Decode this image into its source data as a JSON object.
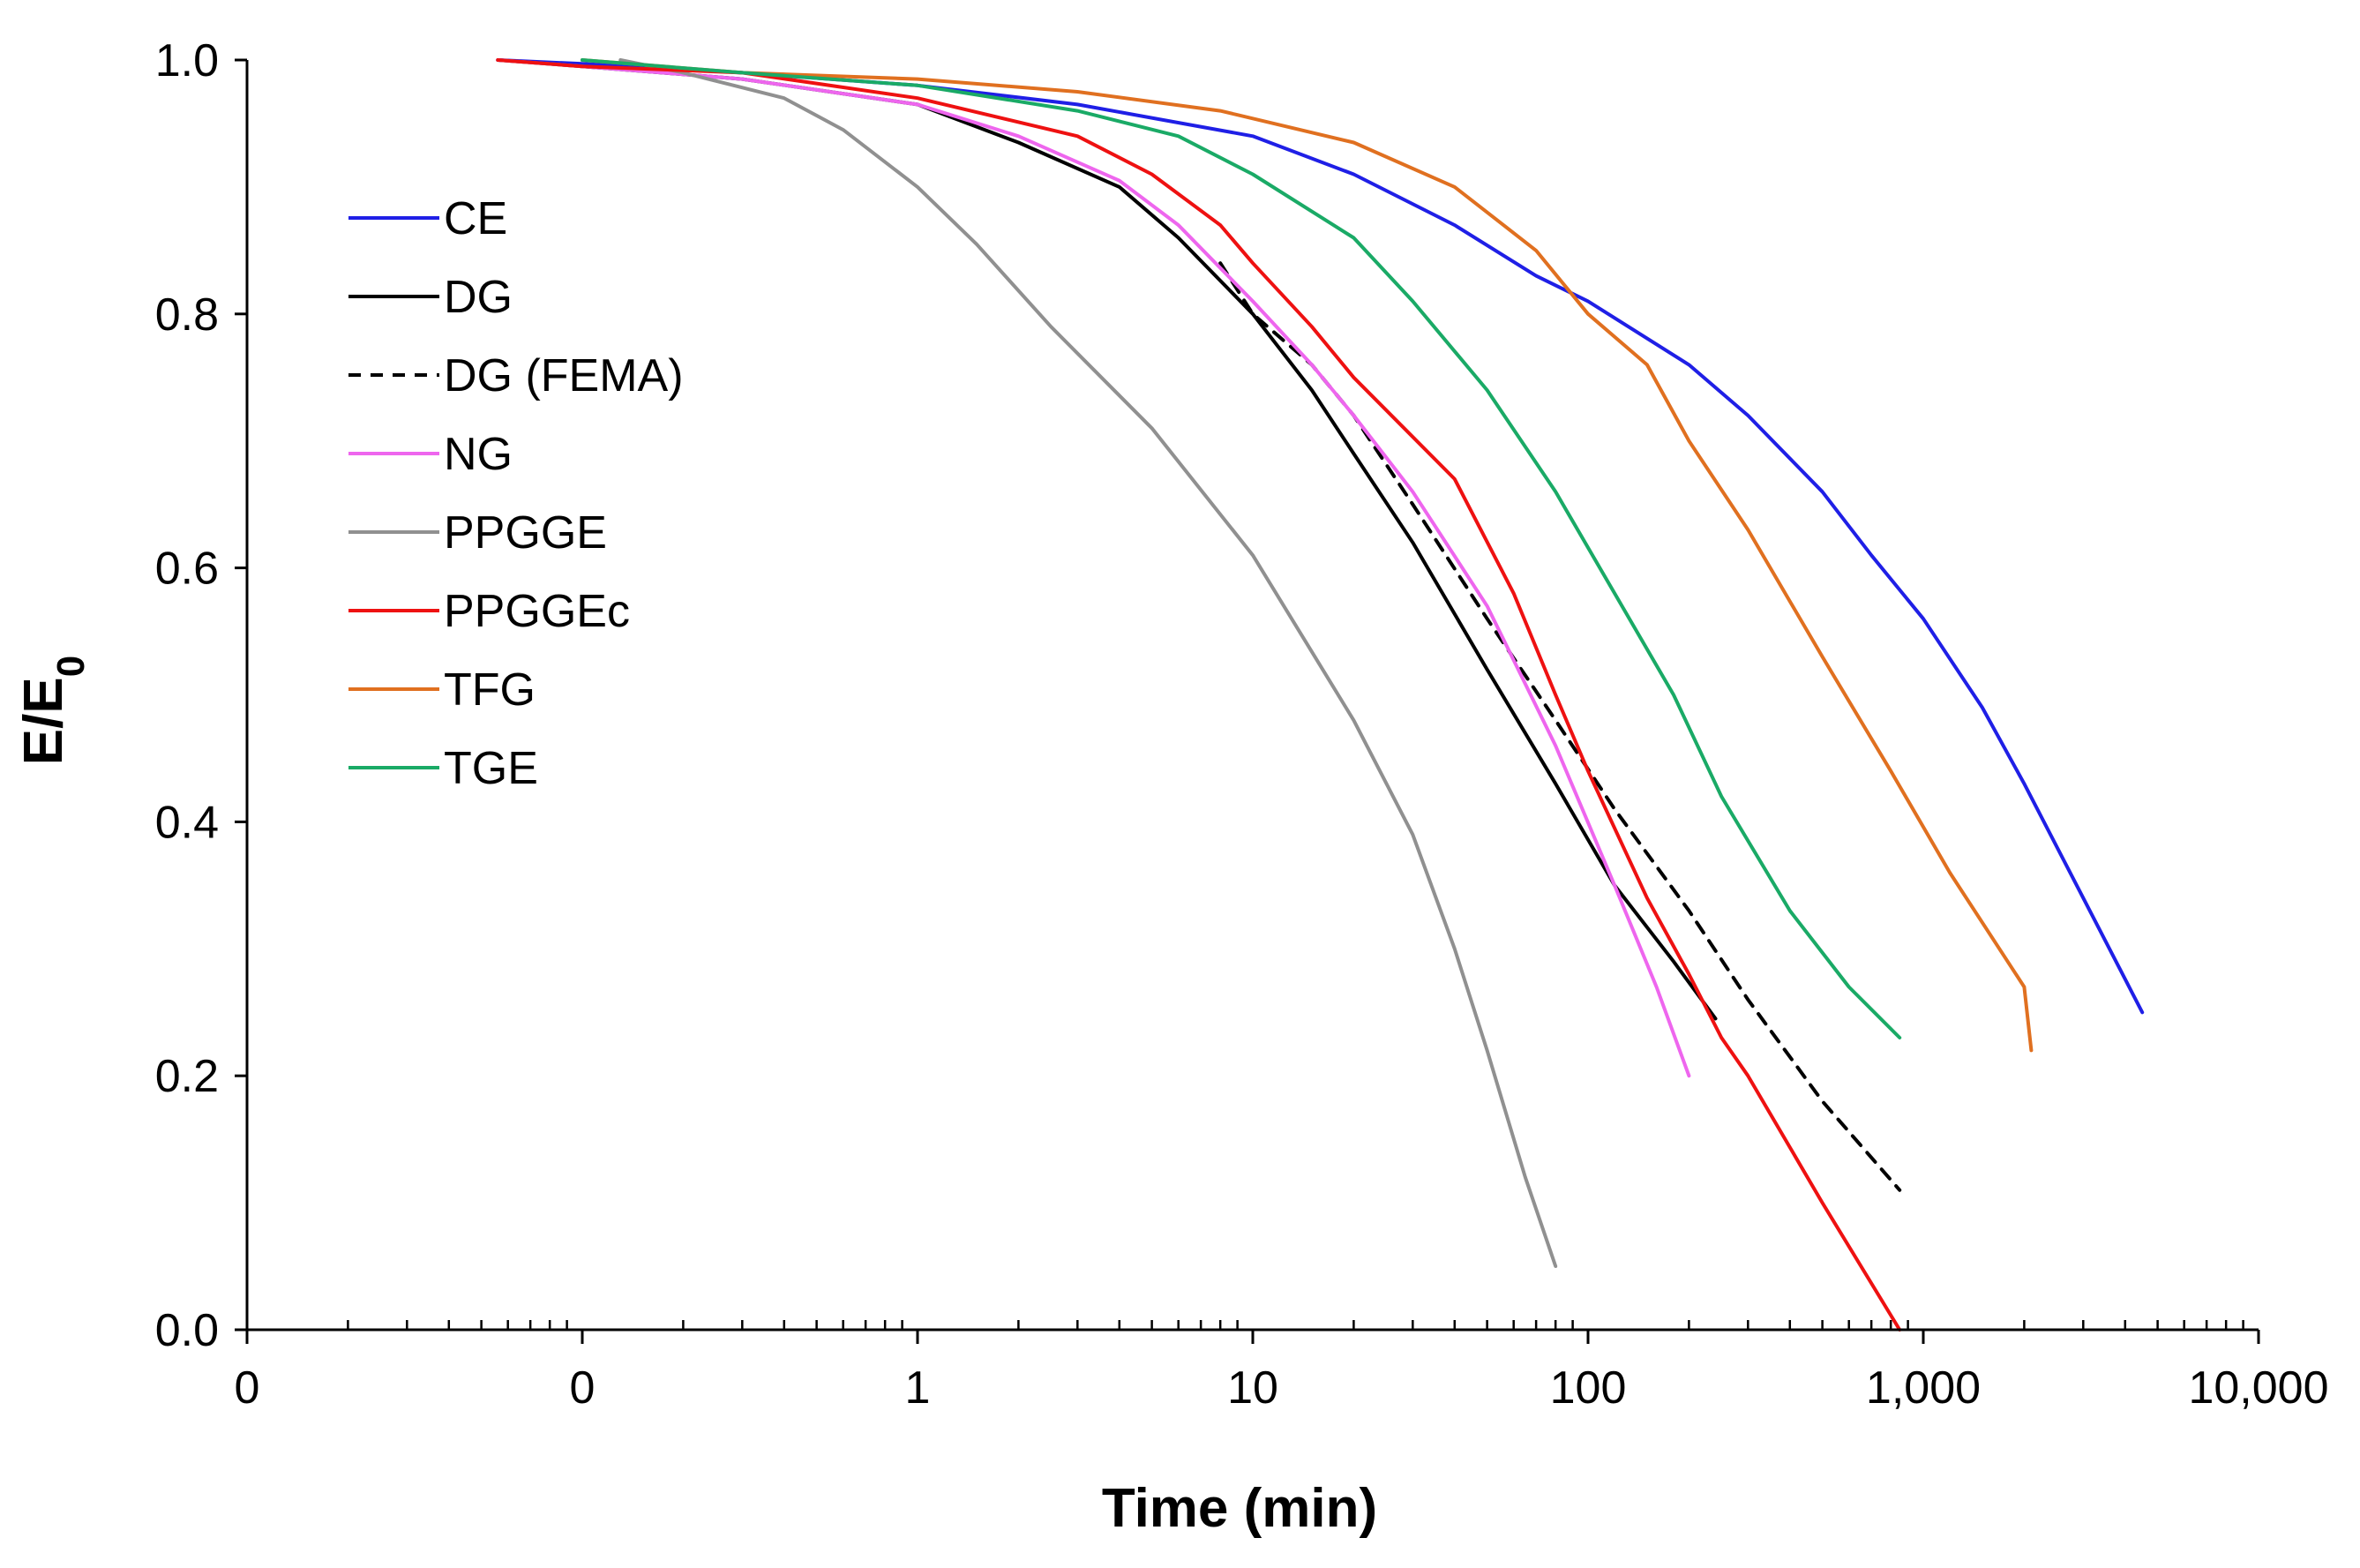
{
  "chart_data": {
    "type": "line",
    "title": "",
    "xlabel": "Time (min)",
    "ylabel_main": "E/E",
    "ylabel_sub": "0",
    "x_scale": "log",
    "xlim": [
      0.01,
      10000
    ],
    "ylim": [
      0,
      1
    ],
    "x_tick_values": [
      0.01,
      0.1,
      1,
      10,
      100,
      1000,
      10000
    ],
    "x_tick_labels": [
      "0",
      "0",
      "1",
      "10",
      "100",
      "1,000",
      "10,000"
    ],
    "y_ticks": [
      0.0,
      0.2,
      0.4,
      0.6,
      0.8,
      1.0
    ],
    "y_tick_labels": [
      "0.0",
      "0.2",
      "0.4",
      "0.6",
      "0.8",
      "1.0"
    ],
    "grid": false,
    "legend_position": "top-left",
    "series": [
      {
        "name": "CE",
        "color": "#1f1fe6",
        "dash": false,
        "points": [
          [
            0.056,
            1.0
          ],
          [
            0.1,
            0.997
          ],
          [
            0.3,
            0.99
          ],
          [
            1,
            0.98
          ],
          [
            3,
            0.965
          ],
          [
            10,
            0.94
          ],
          [
            20,
            0.91
          ],
          [
            40,
            0.87
          ],
          [
            70,
            0.83
          ],
          [
            100,
            0.81
          ],
          [
            200,
            0.76
          ],
          [
            300,
            0.72
          ],
          [
            500,
            0.66
          ],
          [
            700,
            0.61
          ],
          [
            1000,
            0.56
          ],
          [
            1500,
            0.49
          ],
          [
            2000,
            0.43
          ],
          [
            3000,
            0.34
          ],
          [
            4500,
            0.25
          ]
        ]
      },
      {
        "name": "DG",
        "color": "#000000",
        "dash": false,
        "points": [
          [
            0.056,
            1.0
          ],
          [
            0.1,
            0.995
          ],
          [
            0.3,
            0.985
          ],
          [
            1,
            0.965
          ],
          [
            2,
            0.935
          ],
          [
            4,
            0.9
          ],
          [
            6,
            0.86
          ],
          [
            10,
            0.8
          ],
          [
            15,
            0.74
          ],
          [
            20,
            0.69
          ],
          [
            30,
            0.62
          ],
          [
            50,
            0.52
          ],
          [
            80,
            0.43
          ],
          [
            120,
            0.35
          ],
          [
            180,
            0.29
          ],
          [
            240,
            0.245
          ]
        ]
      },
      {
        "name": "DG (FEMA)",
        "color": "#000000",
        "dash": true,
        "points": [
          [
            8,
            0.84
          ],
          [
            10,
            0.8
          ],
          [
            15,
            0.76
          ],
          [
            20,
            0.72
          ],
          [
            30,
            0.65
          ],
          [
            50,
            0.56
          ],
          [
            80,
            0.48
          ],
          [
            120,
            0.41
          ],
          [
            200,
            0.33
          ],
          [
            300,
            0.26
          ],
          [
            500,
            0.18
          ],
          [
            850,
            0.11
          ]
        ]
      },
      {
        "name": "NG",
        "color": "#ee66ee",
        "dash": false,
        "points": [
          [
            0.056,
            1.0
          ],
          [
            0.1,
            0.995
          ],
          [
            0.3,
            0.985
          ],
          [
            1,
            0.965
          ],
          [
            2,
            0.94
          ],
          [
            4,
            0.905
          ],
          [
            6,
            0.87
          ],
          [
            10,
            0.81
          ],
          [
            15,
            0.76
          ],
          [
            20,
            0.72
          ],
          [
            30,
            0.66
          ],
          [
            50,
            0.57
          ],
          [
            80,
            0.46
          ],
          [
            120,
            0.35
          ],
          [
            160,
            0.27
          ],
          [
            200,
            0.2
          ]
        ]
      },
      {
        "name": "PPGGE",
        "color": "#909090",
        "dash": false,
        "points": [
          [
            0.13,
            1.0
          ],
          [
            0.2,
            0.99
          ],
          [
            0.4,
            0.97
          ],
          [
            0.6,
            0.945
          ],
          [
            1,
            0.9
          ],
          [
            1.5,
            0.855
          ],
          [
            2.5,
            0.79
          ],
          [
            5,
            0.71
          ],
          [
            10,
            0.61
          ],
          [
            20,
            0.48
          ],
          [
            30,
            0.39
          ],
          [
            40,
            0.3
          ],
          [
            50,
            0.22
          ],
          [
            65,
            0.12
          ],
          [
            80,
            0.05
          ]
        ]
      },
      {
        "name": "PPGGEc",
        "color": "#ee1111",
        "dash": false,
        "points": [
          [
            0.056,
            1.0
          ],
          [
            0.1,
            0.995
          ],
          [
            0.3,
            0.99
          ],
          [
            1,
            0.97
          ],
          [
            3,
            0.94
          ],
          [
            5,
            0.91
          ],
          [
            8,
            0.87
          ],
          [
            10,
            0.84
          ],
          [
            15,
            0.79
          ],
          [
            20,
            0.75
          ],
          [
            40,
            0.67
          ],
          [
            60,
            0.58
          ],
          [
            80,
            0.5
          ],
          [
            100,
            0.44
          ],
          [
            150,
            0.34
          ],
          [
            200,
            0.28
          ],
          [
            250,
            0.23
          ],
          [
            300,
            0.2
          ],
          [
            500,
            0.1
          ],
          [
            850,
            0.0
          ]
        ]
      },
      {
        "name": "TFG",
        "color": "#e07020",
        "dash": false,
        "points": [
          [
            0.1,
            1.0
          ],
          [
            0.3,
            0.99
          ],
          [
            1,
            0.985
          ],
          [
            3,
            0.975
          ],
          [
            8,
            0.96
          ],
          [
            20,
            0.935
          ],
          [
            40,
            0.9
          ],
          [
            70,
            0.85
          ],
          [
            100,
            0.8
          ],
          [
            150,
            0.76
          ],
          [
            200,
            0.7
          ],
          [
            300,
            0.63
          ],
          [
            500,
            0.53
          ],
          [
            800,
            0.44
          ],
          [
            1200,
            0.36
          ],
          [
            2000,
            0.27
          ],
          [
            2100,
            0.22
          ]
        ]
      },
      {
        "name": "TGE",
        "color": "#1aaa66",
        "dash": false,
        "points": [
          [
            0.1,
            1.0
          ],
          [
            0.3,
            0.99
          ],
          [
            1,
            0.98
          ],
          [
            3,
            0.96
          ],
          [
            6,
            0.94
          ],
          [
            10,
            0.91
          ],
          [
            20,
            0.86
          ],
          [
            30,
            0.81
          ],
          [
            50,
            0.74
          ],
          [
            80,
            0.66
          ],
          [
            120,
            0.58
          ],
          [
            180,
            0.5
          ],
          [
            250,
            0.42
          ],
          [
            400,
            0.33
          ],
          [
            600,
            0.27
          ],
          [
            850,
            0.23
          ]
        ]
      }
    ]
  }
}
